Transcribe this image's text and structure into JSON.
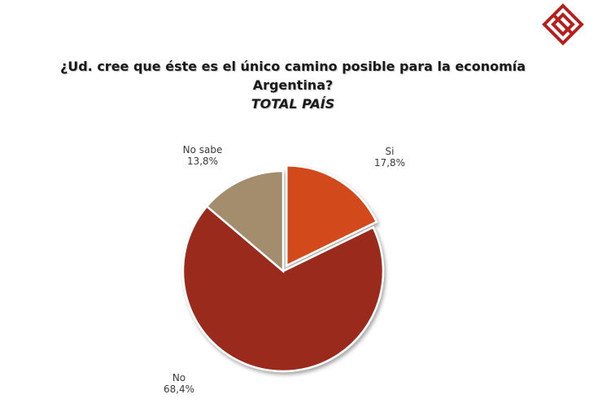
{
  "title_lines": [
    "¿Ud. cree que éste es el único camino posible para la economía",
    "Argentina?"
  ],
  "subtitle": "TOTAL PAÍS",
  "logo": {
    "icon": "red-diamond-logo",
    "color": "#b3201f"
  },
  "chart_data": {
    "type": "pie",
    "title": "¿Ud. cree que éste es el único camino posible para la economía Argentina?",
    "subtitle": "TOTAL PAÍS",
    "categories": [
      "Si",
      "No",
      "No sabe"
    ],
    "values": [
      17.8,
      68.4,
      13.8
    ],
    "value_labels": [
      "17,8%",
      "68,4%",
      "13,8%"
    ],
    "colors": [
      "#d2481c",
      "#992a1e",
      "#a48d6d"
    ],
    "exploded": [
      "Si"
    ],
    "legend": "none"
  }
}
